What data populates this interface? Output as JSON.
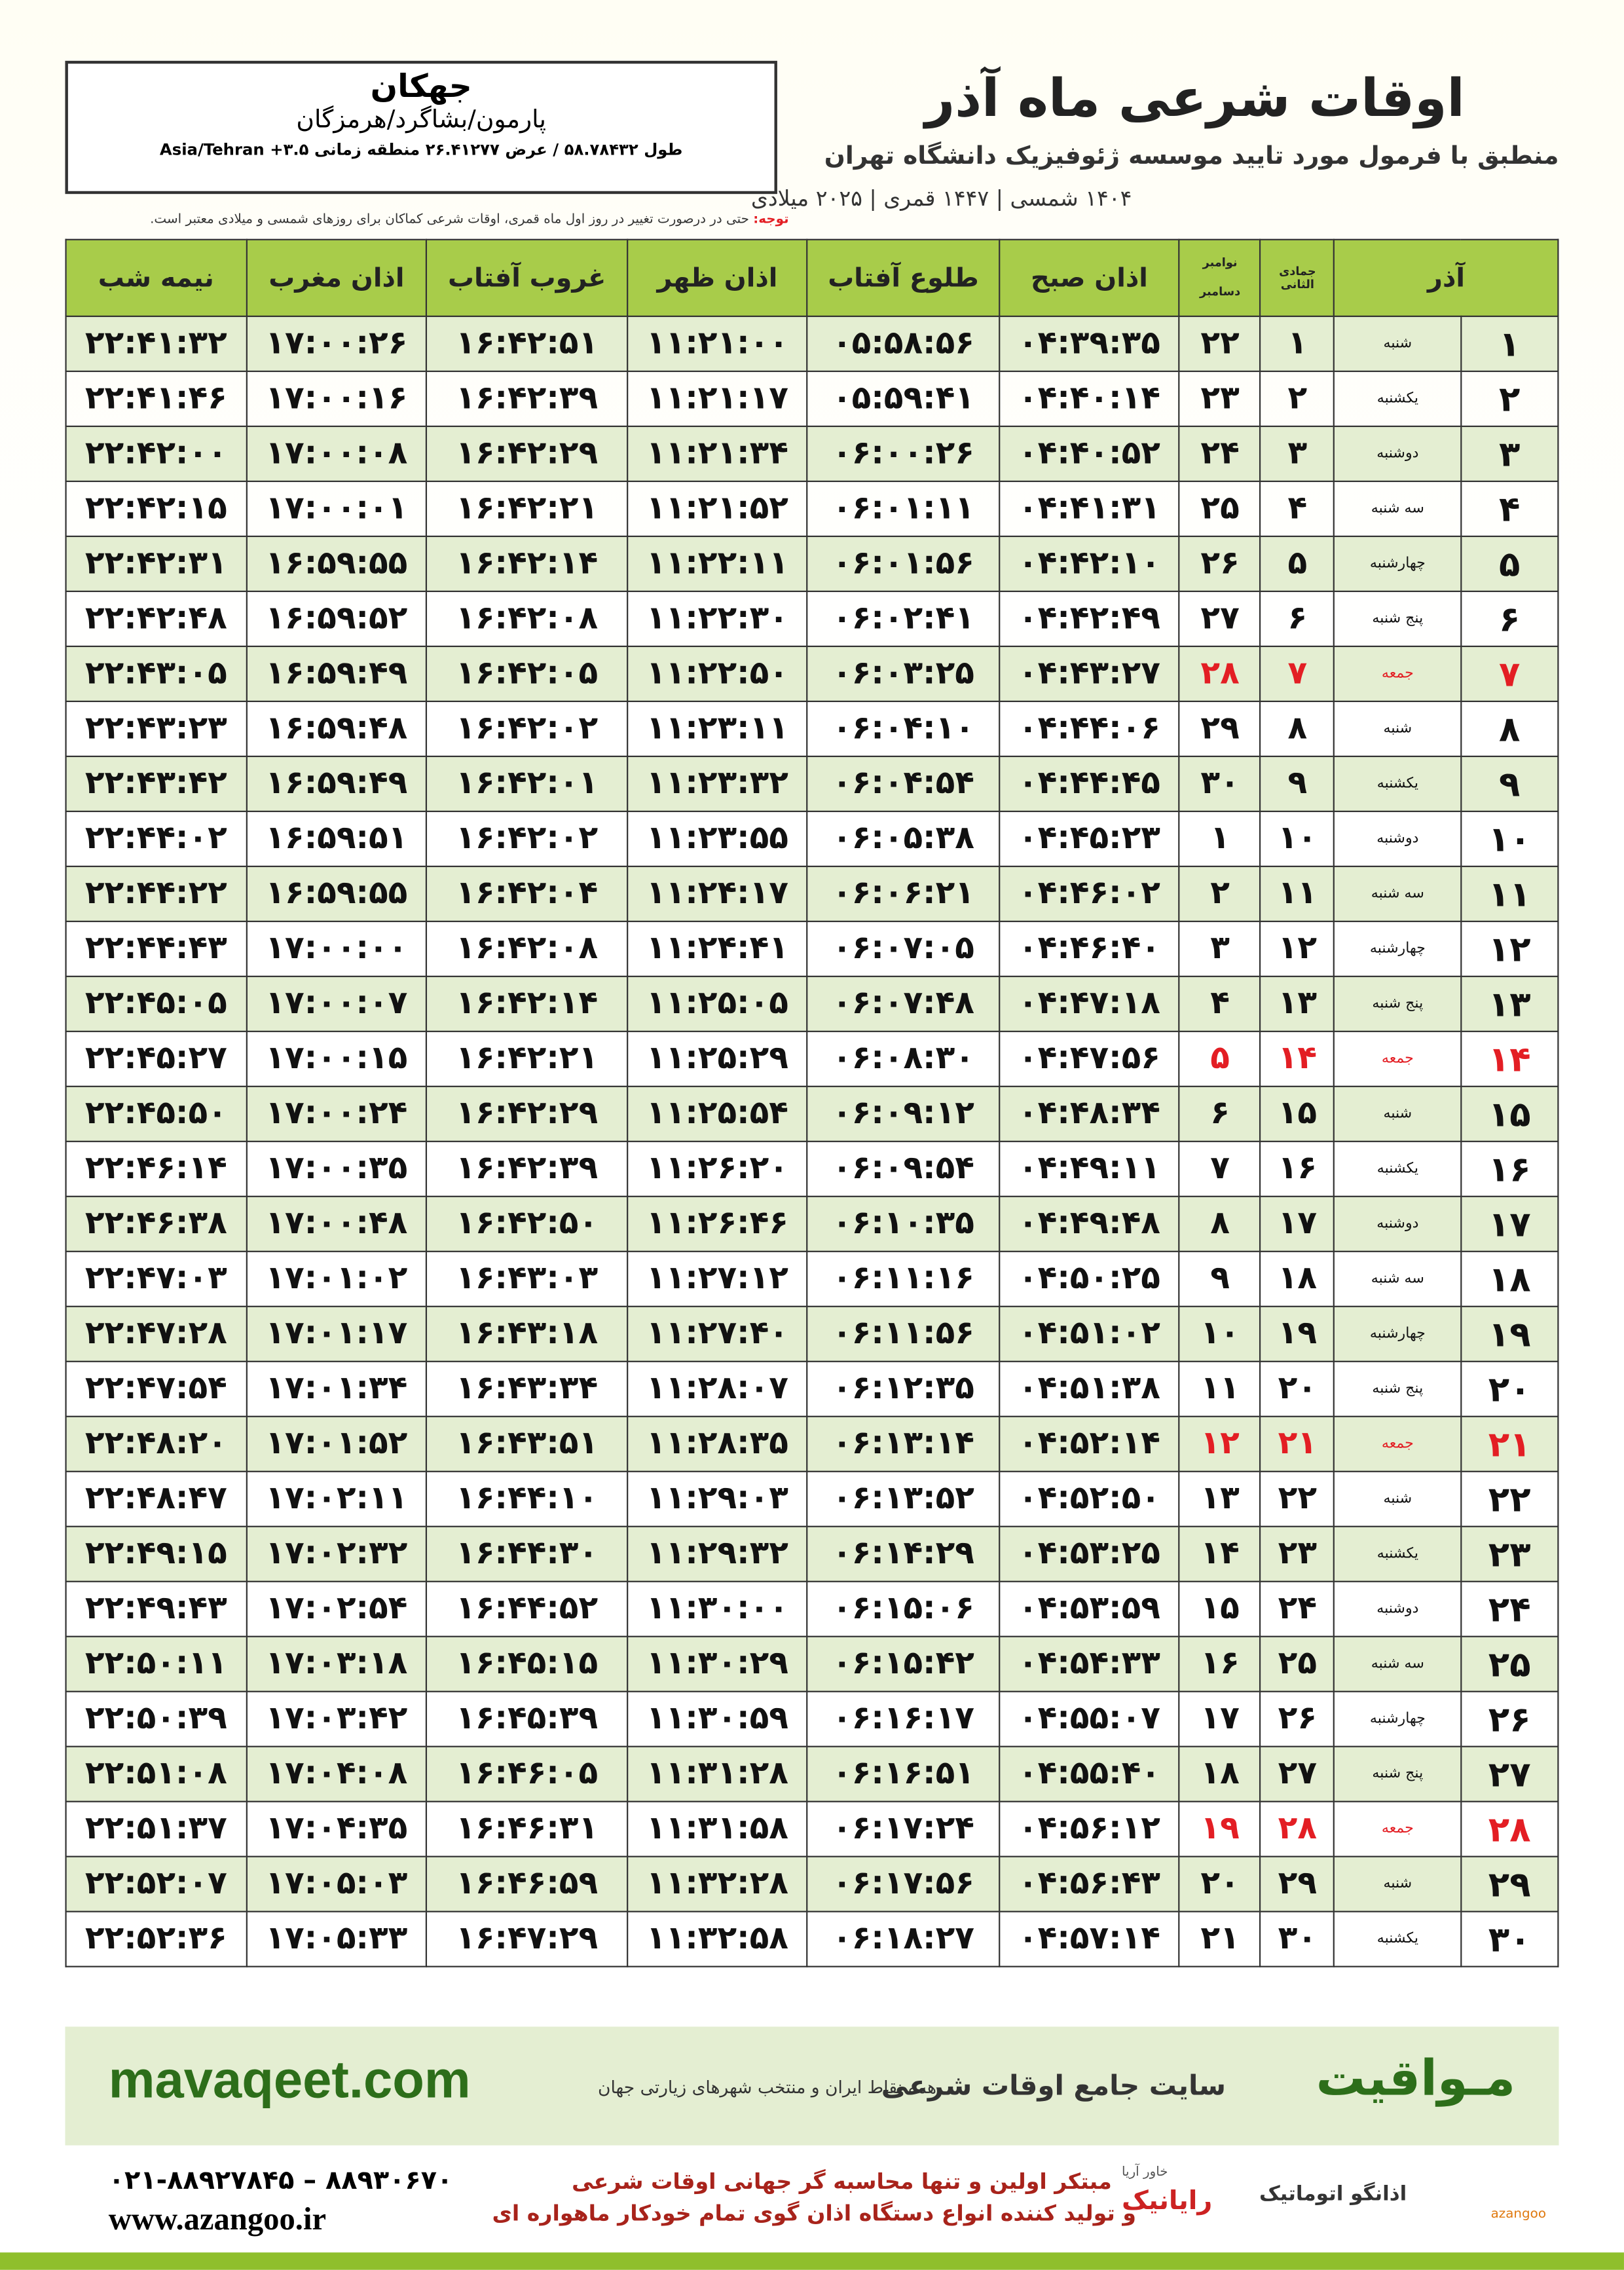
{
  "header": {
    "title": "اوقات شرعی ماه آذر",
    "subtitle": "منطبق با فرمول مورد تایید موسسه ژئوفیزیک دانشگاه تهران",
    "dates": "۱۴۰۴ شمسی | ۱۴۴۷ قمری | ۲۰۲۵ میلادی"
  },
  "location": {
    "city": "جهکان",
    "region": "پارمون/بشاگرد/هرمزگان",
    "coords": "طول ۵۸.۷۸۴۳۲ / عرض ۲۶.۴۱۲۷۷ منطقه زمانی ۳.۵+ Asia/Tehran"
  },
  "note": {
    "label": "توجه:",
    "text": "حتی در درصورت تغییر در روز اول ماه قمری، اوقات شرعی کماکان برای روزهای شمسی و میلادی معتبر است."
  },
  "table": {
    "highlight_color": "#e31e24",
    "header": [
      "آذر",
      "جمادی الثانی",
      "نوامبر",
      "دسامبر",
      "اذان صبح",
      "طلوع آفتاب",
      "اذان ظهر",
      "غروب آفتاب",
      "اذان مغرب",
      "نیمه شب"
    ],
    "rows": [
      {
        "cells": [
          "۱",
          "شنبه",
          "۱",
          "۲۲",
          "۰۴:۳۹:۳۵",
          "۰۵:۵۸:۵۶",
          "۱۱:۲۱:۰۰",
          "۱۶:۴۲:۵۱",
          "۱۷:۰۰:۲۶",
          "۲۲:۴۱:۳۲"
        ]
      },
      {
        "cells": [
          "۲",
          "یکشنبه",
          "۲",
          "۲۳",
          "۰۴:۴۰:۱۴",
          "۰۵:۵۹:۴۱",
          "۱۱:۲۱:۱۷",
          "۱۶:۴۲:۳۹",
          "۱۷:۰۰:۱۶",
          "۲۲:۴۱:۴۶"
        ]
      },
      {
        "cells": [
          "۳",
          "دوشنبه",
          "۳",
          "۲۴",
          "۰۴:۴۰:۵۲",
          "۰۶:۰۰:۲۶",
          "۱۱:۲۱:۳۴",
          "۱۶:۴۲:۲۹",
          "۱۷:۰۰:۰۸",
          "۲۲:۴۲:۰۰"
        ]
      },
      {
        "cells": [
          "۴",
          "سه شنبه",
          "۴",
          "۲۵",
          "۰۴:۴۱:۳۱",
          "۰۶:۰۱:۱۱",
          "۱۱:۲۱:۵۲",
          "۱۶:۴۲:۲۱",
          "۱۷:۰۰:۰۱",
          "۲۲:۴۲:۱۵"
        ]
      },
      {
        "cells": [
          "۵",
          "چهارشنبه",
          "۵",
          "۲۶",
          "۰۴:۴۲:۱۰",
          "۰۶:۰۱:۵۶",
          "۱۱:۲۲:۱۱",
          "۱۶:۴۲:۱۴",
          "۱۶:۵۹:۵۵",
          "۲۲:۴۲:۳۱"
        ]
      },
      {
        "cells": [
          "۶",
          "پنج شنبه",
          "۶",
          "۲۷",
          "۰۴:۴۲:۴۹",
          "۰۶:۰۲:۴۱",
          "۱۱:۲۲:۳۰",
          "۱۶:۴۲:۰۸",
          "۱۶:۵۹:۵۲",
          "۲۲:۴۲:۴۸"
        ]
      },
      {
        "cells": [
          "۷",
          "جمعه",
          "۷",
          "۲۸",
          "۰۴:۴۳:۲۷",
          "۰۶:۰۳:۲۵",
          "۱۱:۲۲:۵۰",
          "۱۶:۴۲:۰۵",
          "۱۶:۵۹:۴۹",
          "۲۲:۴۳:۰۵"
        ],
        "color": "#e31e24"
      },
      {
        "cells": [
          "۸",
          "شنبه",
          "۸",
          "۲۹",
          "۰۴:۴۴:۰۶",
          "۰۶:۰۴:۱۰",
          "۱۱:۲۳:۱۱",
          "۱۶:۴۲:۰۲",
          "۱۶:۵۹:۴۸",
          "۲۲:۴۳:۲۳"
        ]
      },
      {
        "cells": [
          "۹",
          "یکشنبه",
          "۹",
          "۳۰",
          "۰۴:۴۴:۴۵",
          "۰۶:۰۴:۵۴",
          "۱۱:۲۳:۳۲",
          "۱۶:۴۲:۰۱",
          "۱۶:۵۹:۴۹",
          "۲۲:۴۳:۴۲"
        ]
      },
      {
        "cells": [
          "۱۰",
          "دوشنبه",
          "۱۰",
          "۱",
          "۰۴:۴۵:۲۳",
          "۰۶:۰۵:۳۸",
          "۱۱:۲۳:۵۵",
          "۱۶:۴۲:۰۲",
          "۱۶:۵۹:۵۱",
          "۲۲:۴۴:۰۲"
        ]
      },
      {
        "cells": [
          "۱۱",
          "سه شنبه",
          "۱۱",
          "۲",
          "۰۴:۴۶:۰۲",
          "۰۶:۰۶:۲۱",
          "۱۱:۲۴:۱۷",
          "۱۶:۴۲:۰۴",
          "۱۶:۵۹:۵۵",
          "۲۲:۴۴:۲۲"
        ]
      },
      {
        "cells": [
          "۱۲",
          "چهارشنبه",
          "۱۲",
          "۳",
          "۰۴:۴۶:۴۰",
          "۰۶:۰۷:۰۵",
          "۱۱:۲۴:۴۱",
          "۱۶:۴۲:۰۸",
          "۱۷:۰۰:۰۰",
          "۲۲:۴۴:۴۳"
        ]
      },
      {
        "cells": [
          "۱۳",
          "پنج شنبه",
          "۱۳",
          "۴",
          "۰۴:۴۷:۱۸",
          "۰۶:۰۷:۴۸",
          "۱۱:۲۵:۰۵",
          "۱۶:۴۲:۱۴",
          "۱۷:۰۰:۰۷",
          "۲۲:۴۵:۰۵"
        ]
      },
      {
        "cells": [
          "۱۴",
          "جمعه",
          "۱۴",
          "۵",
          "۰۴:۴۷:۵۶",
          "۰۶:۰۸:۳۰",
          "۱۱:۲۵:۲۹",
          "۱۶:۴۲:۲۱",
          "۱۷:۰۰:۱۵",
          "۲۲:۴۵:۲۷"
        ],
        "color": "#e31e24"
      },
      {
        "cells": [
          "۱۵",
          "شنبه",
          "۱۵",
          "۶",
          "۰۴:۴۸:۳۴",
          "۰۶:۰۹:۱۲",
          "۱۱:۲۵:۵۴",
          "۱۶:۴۲:۲۹",
          "۱۷:۰۰:۲۴",
          "۲۲:۴۵:۵۰"
        ]
      },
      {
        "cells": [
          "۱۶",
          "یکشنبه",
          "۱۶",
          "۷",
          "۰۴:۴۹:۱۱",
          "۰۶:۰۹:۵۴",
          "۱۱:۲۶:۲۰",
          "۱۶:۴۲:۳۹",
          "۱۷:۰۰:۳۵",
          "۲۲:۴۶:۱۴"
        ]
      },
      {
        "cells": [
          "۱۷",
          "دوشنبه",
          "۱۷",
          "۸",
          "۰۴:۴۹:۴۸",
          "۰۶:۱۰:۳۵",
          "۱۱:۲۶:۴۶",
          "۱۶:۴۲:۵۰",
          "۱۷:۰۰:۴۸",
          "۲۲:۴۶:۳۸"
        ]
      },
      {
        "cells": [
          "۱۸",
          "سه شنبه",
          "۱۸",
          "۹",
          "۰۴:۵۰:۲۵",
          "۰۶:۱۱:۱۶",
          "۱۱:۲۷:۱۲",
          "۱۶:۴۳:۰۳",
          "۱۷:۰۱:۰۲",
          "۲۲:۴۷:۰۳"
        ]
      },
      {
        "cells": [
          "۱۹",
          "چهارشنبه",
          "۱۹",
          "۱۰",
          "۰۴:۵۱:۰۲",
          "۰۶:۱۱:۵۶",
          "۱۱:۲۷:۴۰",
          "۱۶:۴۳:۱۸",
          "۱۷:۰۱:۱۷",
          "۲۲:۴۷:۲۸"
        ]
      },
      {
        "cells": [
          "۲۰",
          "پنج شنبه",
          "۲۰",
          "۱۱",
          "۰۴:۵۱:۳۸",
          "۰۶:۱۲:۳۵",
          "۱۱:۲۸:۰۷",
          "۱۶:۴۳:۳۴",
          "۱۷:۰۱:۳۴",
          "۲۲:۴۷:۵۴"
        ]
      },
      {
        "cells": [
          "۲۱",
          "جمعه",
          "۲۱",
          "۱۲",
          "۰۴:۵۲:۱۴",
          "۰۶:۱۳:۱۴",
          "۱۱:۲۸:۳۵",
          "۱۶:۴۳:۵۱",
          "۱۷:۰۱:۵۲",
          "۲۲:۴۸:۲۰"
        ],
        "color": "#e31e24"
      },
      {
        "cells": [
          "۲۲",
          "شنبه",
          "۲۲",
          "۱۳",
          "۰۴:۵۲:۵۰",
          "۰۶:۱۳:۵۲",
          "۱۱:۲۹:۰۳",
          "۱۶:۴۴:۱۰",
          "۱۷:۰۲:۱۱",
          "۲۲:۴۸:۴۷"
        ]
      },
      {
        "cells": [
          "۲۳",
          "یکشنبه",
          "۲۳",
          "۱۴",
          "۰۴:۵۳:۲۵",
          "۰۶:۱۴:۲۹",
          "۱۱:۲۹:۳۲",
          "۱۶:۴۴:۳۰",
          "۱۷:۰۲:۳۲",
          "۲۲:۴۹:۱۵"
        ]
      },
      {
        "cells": [
          "۲۴",
          "دوشنبه",
          "۲۴",
          "۱۵",
          "۰۴:۵۳:۵۹",
          "۰۶:۱۵:۰۶",
          "۱۱:۳۰:۰۰",
          "۱۶:۴۴:۵۲",
          "۱۷:۰۲:۵۴",
          "۲۲:۴۹:۴۳"
        ]
      },
      {
        "cells": [
          "۲۵",
          "سه شنبه",
          "۲۵",
          "۱۶",
          "۰۴:۵۴:۳۳",
          "۰۶:۱۵:۴۲",
          "۱۱:۳۰:۲۹",
          "۱۶:۴۵:۱۵",
          "۱۷:۰۳:۱۸",
          "۲۲:۵۰:۱۱"
        ]
      },
      {
        "cells": [
          "۲۶",
          "چهارشنبه",
          "۲۶",
          "۱۷",
          "۰۴:۵۵:۰۷",
          "۰۶:۱۶:۱۷",
          "۱۱:۳۰:۵۹",
          "۱۶:۴۵:۳۹",
          "۱۷:۰۳:۴۲",
          "۲۲:۵۰:۳۹"
        ]
      },
      {
        "cells": [
          "۲۷",
          "پنج شنبه",
          "۲۷",
          "۱۸",
          "۰۴:۵۵:۴۰",
          "۰۶:۱۶:۵۱",
          "۱۱:۳۱:۲۸",
          "۱۶:۴۶:۰۵",
          "۱۷:۰۴:۰۸",
          "۲۲:۵۱:۰۸"
        ]
      },
      {
        "cells": [
          "۲۸",
          "جمعه",
          "۲۸",
          "۱۹",
          "۰۴:۵۶:۱۲",
          "۰۶:۱۷:۲۴",
          "۱۱:۳۱:۵۸",
          "۱۶:۴۶:۳۱",
          "۱۷:۰۴:۳۵",
          "۲۲:۵۱:۳۷"
        ],
        "color": "#e31e24"
      },
      {
        "cells": [
          "۲۹",
          "شنبه",
          "۲۹",
          "۲۰",
          "۰۴:۵۶:۴۳",
          "۰۶:۱۷:۵۶",
          "۱۱:۳۲:۲۸",
          "۱۶:۴۶:۵۹",
          "۱۷:۰۵:۰۳",
          "۲۲:۵۲:۰۷"
        ]
      },
      {
        "cells": [
          "۳۰",
          "یکشنبه",
          "۳۰",
          "۲۱",
          "۰۴:۵۷:۱۴",
          "۰۶:۱۸:۲۷",
          "۱۱:۳۲:۵۸",
          "۱۶:۴۷:۲۹",
          "۱۷:۰۵:۳۳",
          "۲۲:۵۲:۳۶"
        ]
      }
    ]
  },
  "banner": {
    "brand": "مـواقیت",
    "tagline": "سایت جامع اوقات شرعی",
    "sub": "همه نقاط ایران و منتخب شهرهای زیارتی جهان",
    "url": "mavaqeet.com"
  },
  "footer": {
    "phone": "۰۲۱-۸۸۹۲۷۸۴۵ – ۸۸۹۳۰۶۷۰",
    "site": "www.azangoo.ir",
    "line1": "مبتکر اولین و تنها محاسبه گر جهانی اوقات شرعی",
    "line2": "و تولید کننده انواع دستگاه اذان گوی تمام خودکار ماهواره ای",
    "logo1": "رایانیک",
    "logo2": "خاور آریا",
    "logo3": "اذانگو اتوماتیک",
    "logo4": "azangoo"
  }
}
